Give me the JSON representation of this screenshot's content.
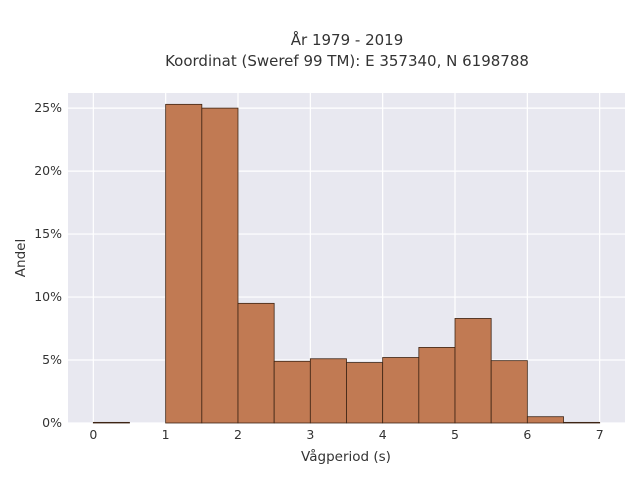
{
  "chart_data": {
    "type": "bar",
    "title_line1": "År 1979 - 2019",
    "title_line2": "Koordinat (Sweref 99 TM): E 357340, N 6198788",
    "xlabel": "Vågperiod (s)",
    "ylabel": "Andel",
    "x_ticks": [
      "0",
      "1",
      "2",
      "3",
      "4",
      "5",
      "6",
      "7"
    ],
    "y_ticks": [
      "0%",
      "5%",
      "10%",
      "15%",
      "20%",
      "25%"
    ],
    "xlim": [
      -0.35,
      7.35
    ],
    "ylim": [
      0,
      26.2
    ],
    "grid": true,
    "bar_color": "#c17a53",
    "background": "#e8e8f0",
    "bins": [
      {
        "x0": 0.0,
        "x1": 0.5,
        "value": 0.05
      },
      {
        "x0": 1.0,
        "x1": 1.5,
        "value": 25.3
      },
      {
        "x0": 1.5,
        "x1": 2.0,
        "value": 25.0
      },
      {
        "x0": 2.0,
        "x1": 2.5,
        "value": 9.5
      },
      {
        "x0": 2.5,
        "x1": 3.0,
        "value": 4.9
      },
      {
        "x0": 3.0,
        "x1": 3.5,
        "value": 5.1
      },
      {
        "x0": 3.5,
        "x1": 4.0,
        "value": 4.8
      },
      {
        "x0": 4.0,
        "x1": 4.5,
        "value": 5.2
      },
      {
        "x0": 4.5,
        "x1": 5.0,
        "value": 6.0
      },
      {
        "x0": 5.0,
        "x1": 5.5,
        "value": 8.3
      },
      {
        "x0": 5.5,
        "x1": 6.0,
        "value": 4.95
      },
      {
        "x0": 6.0,
        "x1": 6.5,
        "value": 0.5
      },
      {
        "x0": 6.5,
        "x1": 7.0,
        "value": 0.05
      }
    ]
  }
}
